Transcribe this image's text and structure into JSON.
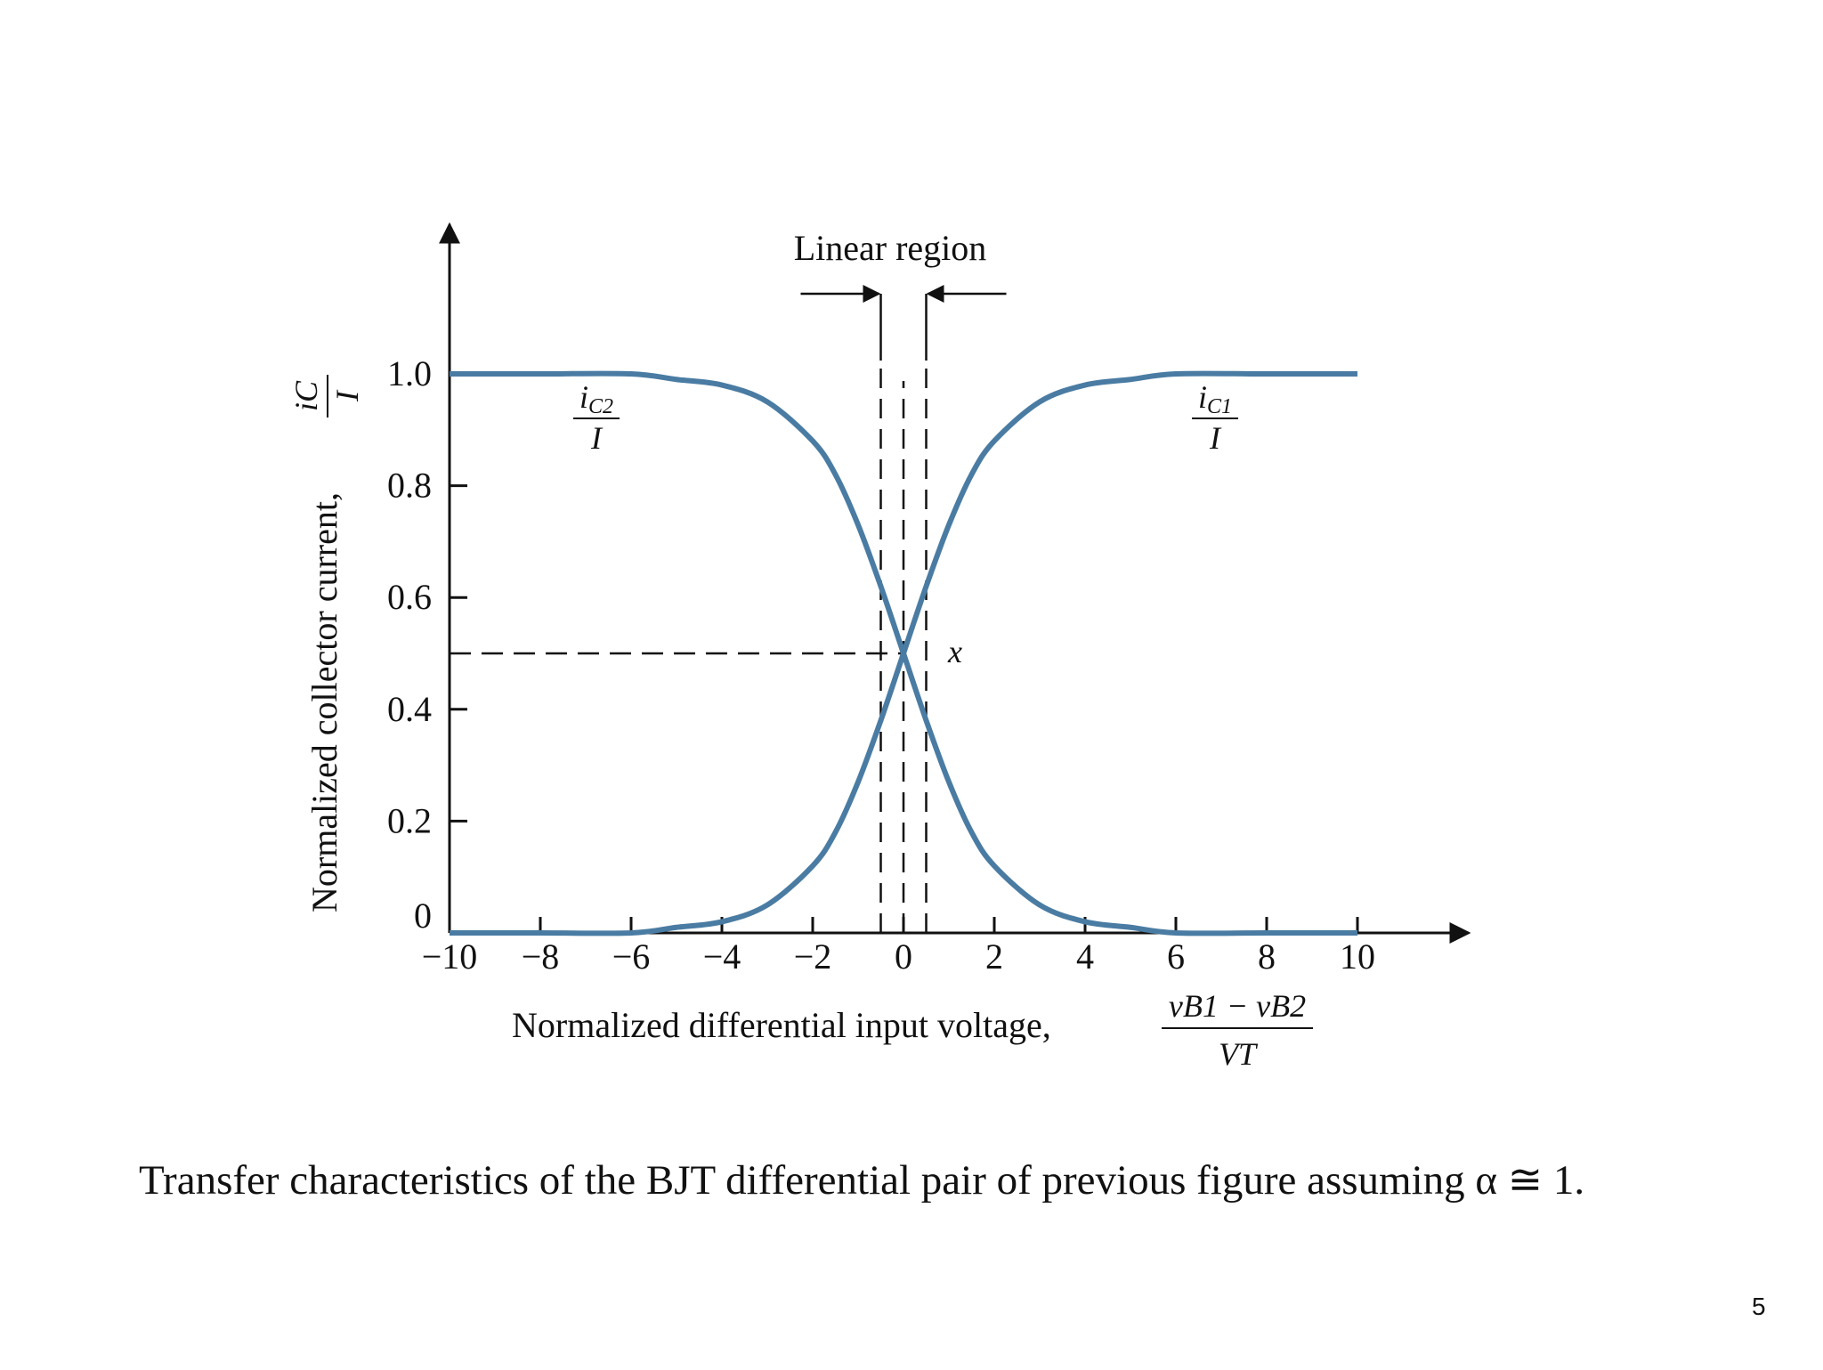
{
  "chart_data": {
    "type": "line",
    "xlabel": "Normalized differential input voltage,",
    "xlabel_fraction": {
      "numerator": "vB1 − vB2",
      "denominator": "VT"
    },
    "ylabel": "Normalized collector current,",
    "ylabel_fraction": {
      "numerator": "iC",
      "denominator": "I"
    },
    "xlim": [
      -10,
      10
    ],
    "ylim": [
      0,
      1.0
    ],
    "x_ticks": [
      -10,
      -8,
      -6,
      -4,
      -2,
      0,
      2,
      4,
      6,
      8,
      10
    ],
    "x_tick_labels": [
      "−10",
      "−8",
      "−6",
      "−4",
      "−2",
      "0",
      "2",
      "4",
      "6",
      "8",
      "10"
    ],
    "y_ticks": [
      0,
      0.2,
      0.4,
      0.6,
      0.8,
      1.0
    ],
    "y_tick_labels": [
      "0",
      "0.2",
      "0.4",
      "0.6",
      "0.8",
      "1.0"
    ],
    "grid": false,
    "line_color": "#4a7ca3",
    "series": [
      {
        "label_fraction": {
          "numerator": "iC1",
          "denominator": "I"
        },
        "x": [
          -10,
          -8,
          -6,
          -5,
          -4,
          -3,
          -2,
          -1.5,
          -1,
          -0.5,
          0,
          0.5,
          1,
          1.5,
          2,
          3,
          4,
          5,
          6,
          8,
          10
        ],
        "y": [
          0.0,
          0.0,
          0.0,
          0.01,
          0.02,
          0.05,
          0.12,
          0.18,
          0.27,
          0.38,
          0.5,
          0.62,
          0.73,
          0.82,
          0.88,
          0.95,
          0.98,
          0.99,
          1.0,
          1.0,
          1.0
        ]
      },
      {
        "label_fraction": {
          "numerator": "iC2",
          "denominator": "I"
        },
        "x": [
          -10,
          -8,
          -6,
          -5,
          -4,
          -3,
          -2,
          -1.5,
          -1,
          -0.5,
          0,
          0.5,
          1,
          1.5,
          2,
          3,
          4,
          5,
          6,
          8,
          10
        ],
        "y": [
          1.0,
          1.0,
          1.0,
          0.99,
          0.98,
          0.95,
          0.88,
          0.82,
          0.73,
          0.62,
          0.5,
          0.38,
          0.27,
          0.18,
          0.12,
          0.05,
          0.02,
          0.01,
          0.0,
          0.0,
          0.0
        ]
      }
    ],
    "annotations": {
      "linear_region": "Linear region",
      "linear_region_x": [
        -0.5,
        0.5
      ],
      "crossover_point": {
        "label": "x",
        "x": 0,
        "y": 0.5
      }
    }
  },
  "caption": {
    "text": "Transfer characteristics of the BJT differential pair of previous figure assuming α ≅ 1."
  },
  "page_number": "5"
}
